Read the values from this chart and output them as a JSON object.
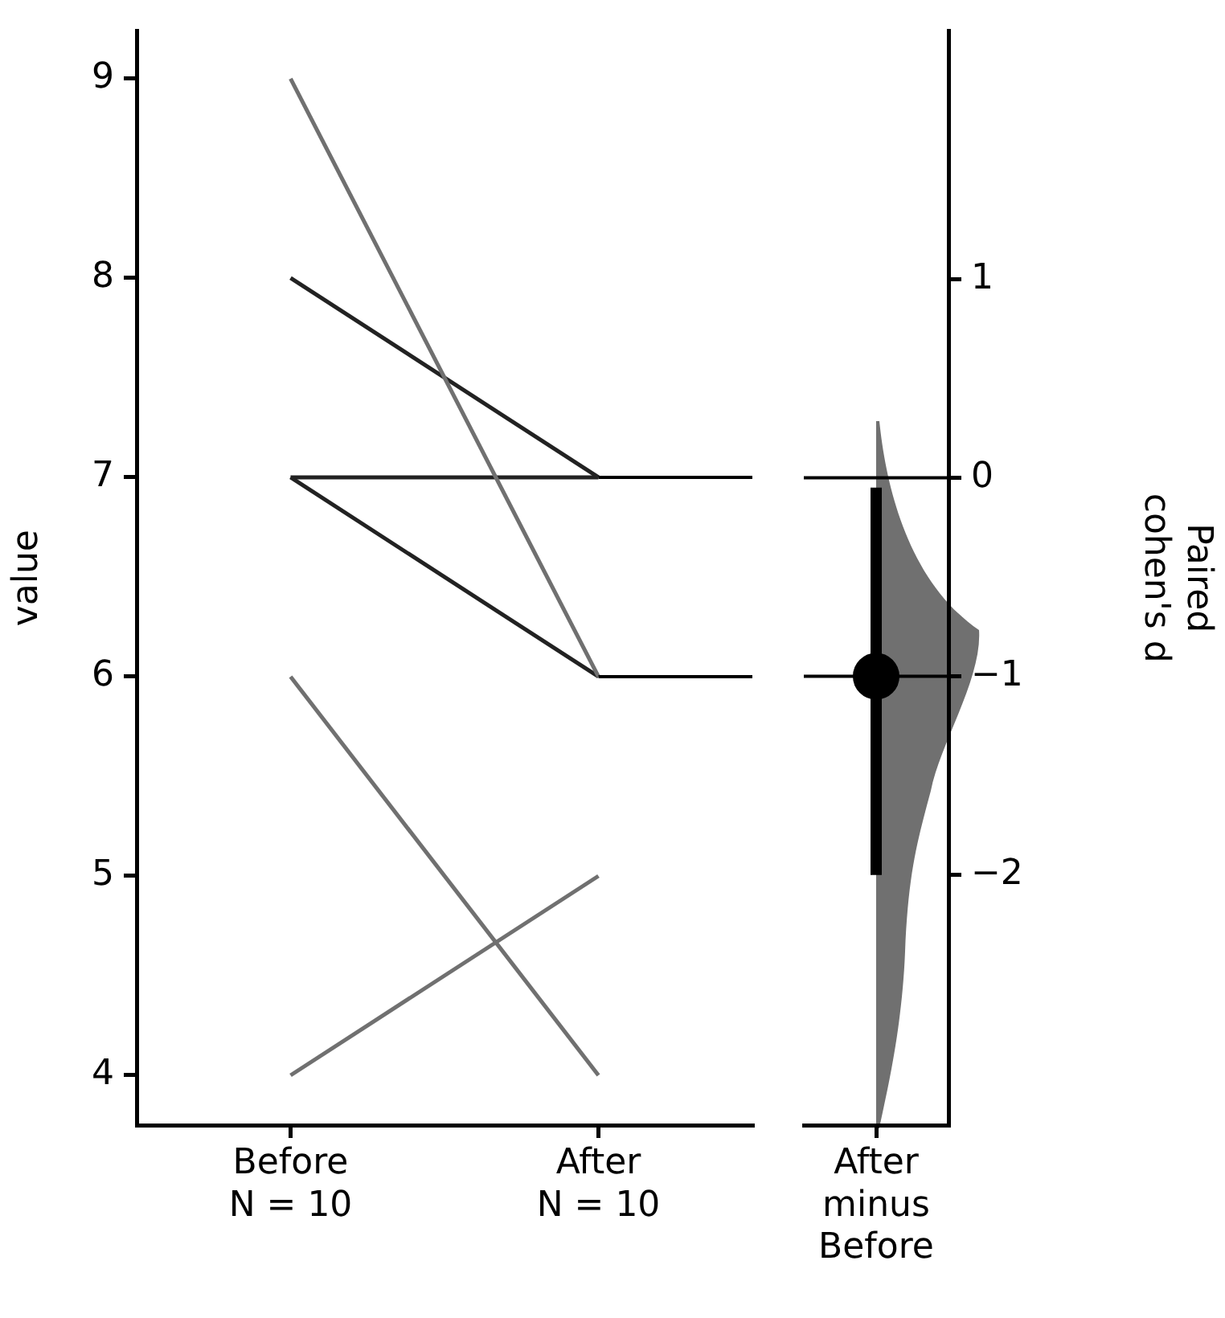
{
  "chart_data": [
    {
      "type": "line",
      "ylabel": "value",
      "categories": [
        "Before\nN = 10",
        "After\nN = 10"
      ],
      "ylim": [
        3.75,
        9.24
      ],
      "yticks": [
        4,
        5,
        6,
        7,
        8,
        9
      ],
      "grid": false,
      "legend": false,
      "marker": "none",
      "line_style": "solid",
      "series": [
        {
          "color": "#707070",
          "values": [
            9,
            6
          ]
        },
        {
          "color": "#222222",
          "values": [
            8,
            7
          ]
        },
        {
          "color": "#222222",
          "values": [
            7,
            7
          ]
        },
        {
          "color": "#222222",
          "values": [
            7,
            6
          ]
        },
        {
          "color": "#707070",
          "values": [
            6,
            4
          ]
        },
        {
          "color": "#707070",
          "values": [
            4,
            5
          ]
        }
      ],
      "ref_lines": [
        {
          "axis": "y",
          "value": 7,
          "color": "#000000"
        },
        {
          "axis": "y",
          "value": 6,
          "color": "#000000"
        }
      ]
    },
    {
      "type": "scatter",
      "y2label": "Paired\ncohen's d",
      "categories": [
        "After\nminus\nBefore"
      ],
      "y2lim": [
        -3.26,
        2.25
      ],
      "y2ticks": [
        -2,
        -1,
        0,
        1
      ],
      "grid": false,
      "legend": false,
      "marker": "circle",
      "series": [
        {
          "color": "#000000",
          "axis": "y2",
          "values": [
            -1
          ],
          "errors": [
            [
              -2,
              -0.05
            ]
          ]
        }
      ],
      "ref_lines": [
        {
          "axis": "y2",
          "value": 0,
          "color": "#000000"
        },
        {
          "axis": "y2",
          "value": -1,
          "color": "#000000"
        }
      ]
    }
  ]
}
